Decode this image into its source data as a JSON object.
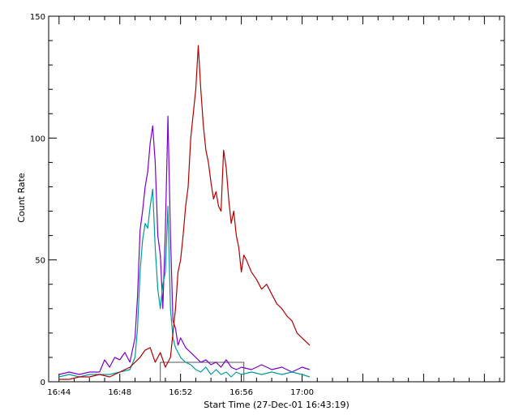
{
  "chart_data": {
    "type": "line",
    "title": "",
    "xlabel": "Start Time (27-Dec-01 16:43:19)",
    "ylabel": "Count Rate",
    "x_unit": "time (HH:MM, 27-Dec-01)",
    "xlim": [
      "16:43:19",
      "17:13:19"
    ],
    "ylim": [
      0,
      150
    ],
    "x_ticks": [
      "16:44",
      "16:48",
      "16:52",
      "16:56",
      "17:00"
    ],
    "y_ticks": [
      0,
      50,
      100,
      150
    ],
    "grid": false,
    "legend": "none",
    "series": [
      {
        "color": "#7a00cc",
        "points": [
          [
            "16:44:00",
            3
          ],
          [
            "16:44:40",
            4
          ],
          [
            "16:45:20",
            3
          ],
          [
            "16:46:00",
            4
          ],
          [
            "16:46:40",
            4
          ],
          [
            "16:47:00",
            9
          ],
          [
            "16:47:20",
            6
          ],
          [
            "16:47:40",
            10
          ],
          [
            "16:48:00",
            9
          ],
          [
            "16:48:20",
            12
          ],
          [
            "16:48:40",
            8
          ],
          [
            "16:49:00",
            18
          ],
          [
            "16:49:10",
            35
          ],
          [
            "16:49:20",
            62
          ],
          [
            "16:49:30",
            70
          ],
          [
            "16:49:40",
            80
          ],
          [
            "16:49:50",
            86
          ],
          [
            "16:50:00",
            98
          ],
          [
            "16:50:10",
            105
          ],
          [
            "16:50:20",
            90
          ],
          [
            "16:50:30",
            60
          ],
          [
            "16:50:40",
            52
          ],
          [
            "16:50:50",
            30
          ],
          [
            "16:51:00",
            62
          ],
          [
            "16:51:10",
            109
          ],
          [
            "16:51:20",
            60
          ],
          [
            "16:51:30",
            25
          ],
          [
            "16:51:40",
            22
          ],
          [
            "16:51:50",
            15
          ],
          [
            "16:52:00",
            18
          ],
          [
            "16:52:20",
            14
          ],
          [
            "16:52:40",
            12
          ],
          [
            "16:53:00",
            10
          ],
          [
            "16:53:20",
            8
          ],
          [
            "16:53:40",
            9
          ],
          [
            "16:54:00",
            7
          ],
          [
            "16:54:20",
            8
          ],
          [
            "16:54:40",
            6
          ],
          [
            "16:55:00",
            9
          ],
          [
            "16:55:20",
            6
          ],
          [
            "16:55:40",
            5
          ],
          [
            "16:56:00",
            6
          ],
          [
            "16:56:40",
            5
          ],
          [
            "16:57:20",
            7
          ],
          [
            "16:58:00",
            5
          ],
          [
            "16:58:40",
            6
          ],
          [
            "16:59:20",
            4
          ],
          [
            "17:00:00",
            6
          ],
          [
            "17:00:30",
            5
          ]
        ]
      },
      {
        "color": "#009999",
        "points": [
          [
            "16:44:00",
            2
          ],
          [
            "16:44:40",
            3
          ],
          [
            "16:45:20",
            2
          ],
          [
            "16:46:00",
            3
          ],
          [
            "16:46:40",
            3
          ],
          [
            "16:47:20",
            3
          ],
          [
            "16:48:00",
            4
          ],
          [
            "16:48:40",
            5
          ],
          [
            "16:49:00",
            10
          ],
          [
            "16:49:10",
            22
          ],
          [
            "16:49:20",
            45
          ],
          [
            "16:49:30",
            58
          ],
          [
            "16:49:40",
            65
          ],
          [
            "16:49:50",
            63
          ],
          [
            "16:50:00",
            72
          ],
          [
            "16:50:10",
            79
          ],
          [
            "16:50:20",
            55
          ],
          [
            "16:50:30",
            38
          ],
          [
            "16:50:40",
            30
          ],
          [
            "16:50:50",
            40
          ],
          [
            "16:51:00",
            45
          ],
          [
            "16:51:10",
            72
          ],
          [
            "16:51:20",
            30
          ],
          [
            "16:51:30",
            18
          ],
          [
            "16:51:40",
            14
          ],
          [
            "16:52:00",
            10
          ],
          [
            "16:52:20",
            8
          ],
          [
            "16:52:40",
            7
          ],
          [
            "16:53:00",
            5
          ],
          [
            "16:53:20",
            4
          ],
          [
            "16:53:40",
            6
          ],
          [
            "16:54:00",
            3
          ],
          [
            "16:54:20",
            5
          ],
          [
            "16:54:40",
            3
          ],
          [
            "16:55:00",
            4
          ],
          [
            "16:55:20",
            2
          ],
          [
            "16:55:40",
            4
          ],
          [
            "16:56:00",
            3
          ],
          [
            "16:56:40",
            4
          ],
          [
            "16:57:20",
            3
          ],
          [
            "16:58:00",
            4
          ],
          [
            "16:58:40",
            3
          ],
          [
            "16:59:20",
            4
          ],
          [
            "17:00:00",
            3
          ],
          [
            "17:00:30",
            2
          ]
        ]
      },
      {
        "color": "#b30000",
        "points": [
          [
            "16:44:00",
            1
          ],
          [
            "16:44:40",
            1
          ],
          [
            "16:45:20",
            2
          ],
          [
            "16:46:00",
            2
          ],
          [
            "16:46:40",
            3
          ],
          [
            "16:47:20",
            2
          ],
          [
            "16:48:00",
            4
          ],
          [
            "16:48:40",
            6
          ],
          [
            "16:49:00",
            8
          ],
          [
            "16:49:20",
            10
          ],
          [
            "16:49:40",
            13
          ],
          [
            "16:50:00",
            14
          ],
          [
            "16:50:20",
            8
          ],
          [
            "16:50:40",
            12
          ],
          [
            "16:51:00",
            6
          ],
          [
            "16:51:20",
            10
          ],
          [
            "16:51:40",
            30
          ],
          [
            "16:51:50",
            45
          ],
          [
            "16:52:00",
            50
          ],
          [
            "16:52:10",
            60
          ],
          [
            "16:52:20",
            72
          ],
          [
            "16:52:30",
            80
          ],
          [
            "16:52:40",
            100
          ],
          [
            "16:52:50",
            110
          ],
          [
            "16:53:00",
            120
          ],
          [
            "16:53:10",
            138
          ],
          [
            "16:53:20",
            120
          ],
          [
            "16:53:30",
            105
          ],
          [
            "16:53:40",
            95
          ],
          [
            "16:53:50",
            90
          ],
          [
            "16:54:00",
            82
          ],
          [
            "16:54:10",
            75
          ],
          [
            "16:54:20",
            78
          ],
          [
            "16:54:30",
            72
          ],
          [
            "16:54:40",
            70
          ],
          [
            "16:54:50",
            95
          ],
          [
            "16:55:00",
            88
          ],
          [
            "16:55:10",
            75
          ],
          [
            "16:55:20",
            65
          ],
          [
            "16:55:30",
            70
          ],
          [
            "16:55:40",
            60
          ],
          [
            "16:55:50",
            55
          ],
          [
            "16:56:00",
            45
          ],
          [
            "16:56:10",
            52
          ],
          [
            "16:56:20",
            50
          ],
          [
            "16:56:40",
            45
          ],
          [
            "16:57:00",
            42
          ],
          [
            "16:57:20",
            38
          ],
          [
            "16:57:40",
            40
          ],
          [
            "16:58:00",
            36
          ],
          [
            "16:58:20",
            32
          ],
          [
            "16:58:40",
            30
          ],
          [
            "16:59:00",
            27
          ],
          [
            "16:59:20",
            25
          ],
          [
            "16:59:40",
            20
          ],
          [
            "17:00:00",
            18
          ],
          [
            "17:00:20",
            16
          ],
          [
            "17:00:30",
            15
          ]
        ]
      }
    ],
    "annotations": [
      {
        "type": "box",
        "x_start": "16:50:40",
        "x_end": "16:56:10",
        "y_top": 8
      }
    ]
  }
}
